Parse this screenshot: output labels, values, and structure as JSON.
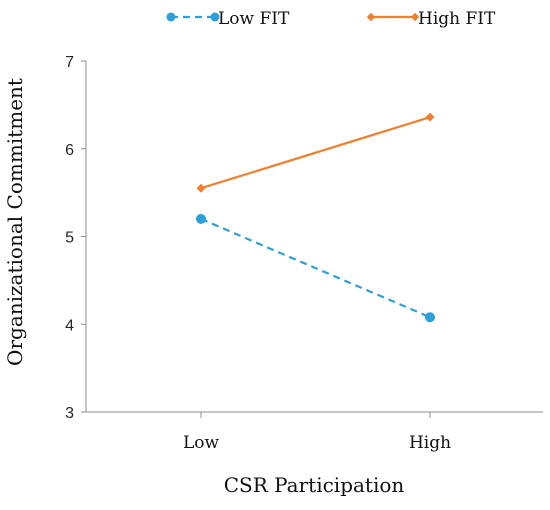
{
  "chart_data": {
    "type": "line",
    "title": "",
    "xlabel": "CSR Participation",
    "ylabel": "Organizational Commitment",
    "categories": [
      "Low",
      "High"
    ],
    "ylim": [
      3,
      7
    ],
    "yticks": [
      "3",
      "4",
      "5",
      "6",
      "7"
    ],
    "legend_position": "top",
    "grid": false,
    "series": [
      {
        "name": "Low FIT",
        "values": [
          5.2,
          4.08
        ],
        "color": "#2E9FD8",
        "dash": "dashed",
        "marker": "circle"
      },
      {
        "name": "High FIT",
        "values": [
          5.55,
          6.36
        ],
        "color": "#F07F2E",
        "dash": "solid",
        "marker": "diamond"
      }
    ]
  }
}
